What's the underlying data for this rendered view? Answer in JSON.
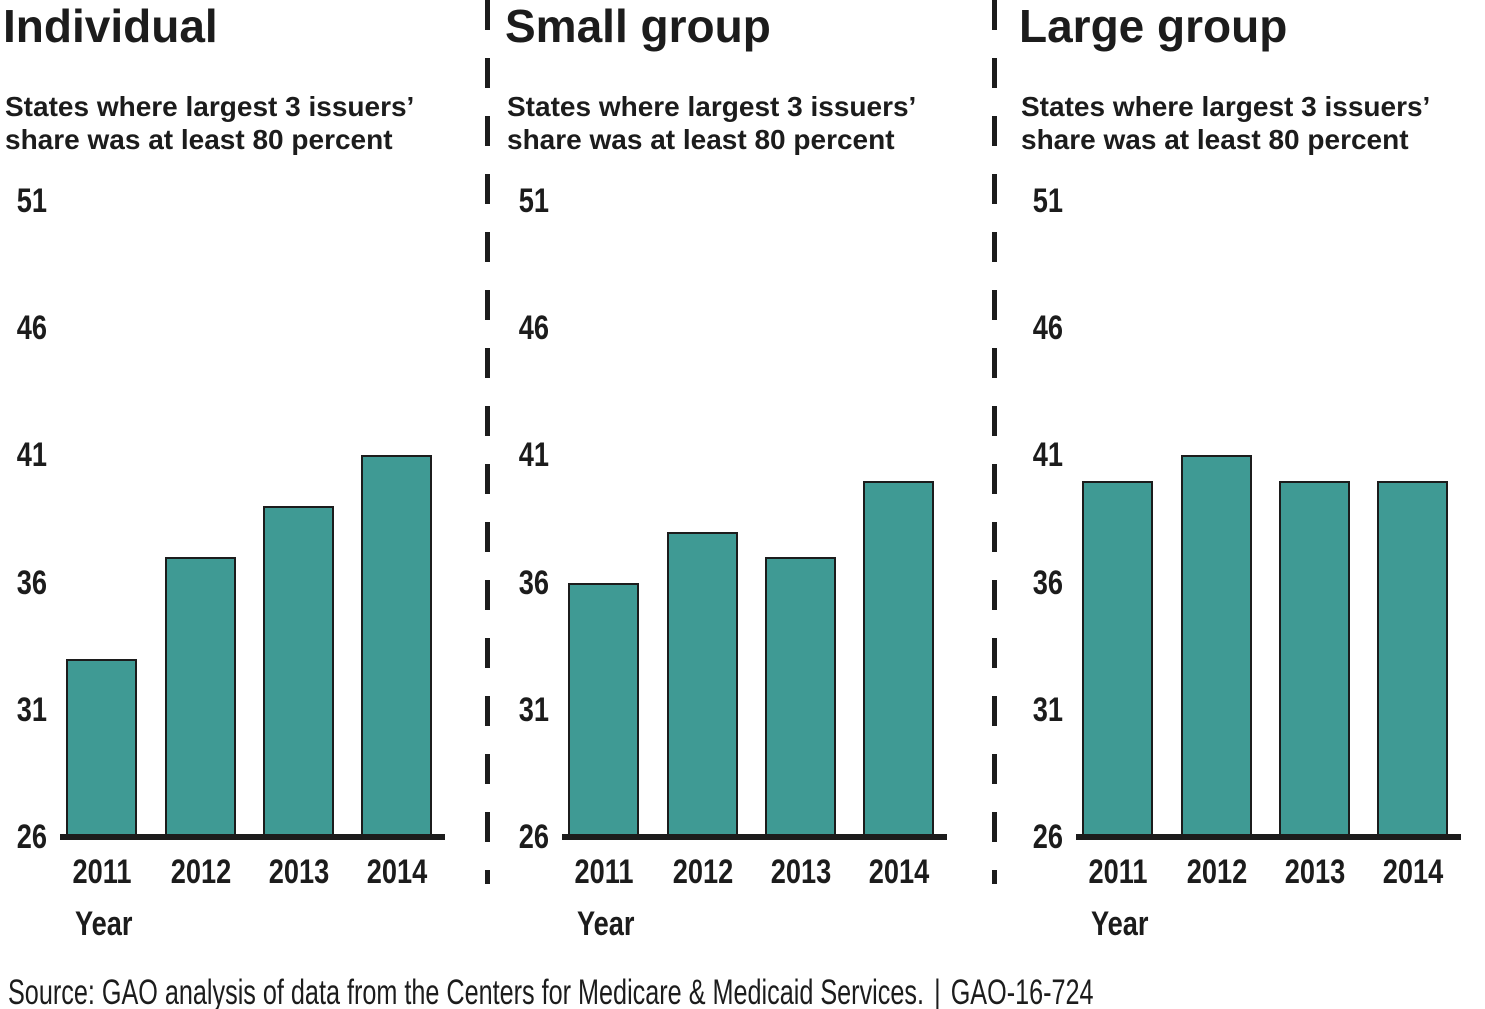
{
  "figure": {
    "kind": "three-panel bar chart figure"
  },
  "colors": {
    "bar_fill": "#3F9A94",
    "bar_border": "#1c1c1c",
    "ink": "#1c1c1c",
    "background": "#ffffff"
  },
  "chart_data": [
    {
      "type": "bar",
      "panel": "individual",
      "title": "Individual",
      "subtitle_lines": [
        "States where largest 3 issuers’",
        "share was at least 80 percent"
      ],
      "categories": [
        "2011",
        "2012",
        "2013",
        "2014"
      ],
      "values": [
        33,
        37,
        39,
        41
      ],
      "xlabel": "Year",
      "ylabel": "",
      "ylim": [
        26,
        51
      ],
      "yticks": [
        26,
        31,
        36,
        41,
        46,
        51
      ],
      "grid": false,
      "legend": "none"
    },
    {
      "type": "bar",
      "panel": "small-group",
      "title": "Small group",
      "subtitle_lines": [
        "States where largest 3 issuers’",
        "share was at least 80 percent"
      ],
      "categories": [
        "2011",
        "2012",
        "2013",
        "2014"
      ],
      "values": [
        36,
        38,
        37,
        40
      ],
      "xlabel": "Year",
      "ylabel": "",
      "ylim": [
        26,
        51
      ],
      "yticks": [
        26,
        31,
        36,
        41,
        46,
        51
      ],
      "grid": false,
      "legend": "none"
    },
    {
      "type": "bar",
      "panel": "large-group",
      "title": "Large group",
      "subtitle_lines": [
        "States where largest 3 issuers’",
        "share was at least 80 percent"
      ],
      "categories": [
        "2011",
        "2012",
        "2013",
        "2014"
      ],
      "values": [
        40,
        41,
        40,
        40
      ],
      "xlabel": "Year",
      "ylabel": "",
      "ylim": [
        26,
        51
      ],
      "yticks": [
        26,
        31,
        36,
        41,
        46,
        51
      ],
      "grid": false,
      "legend": "none"
    }
  ],
  "footer": {
    "source": "Source: GAO analysis of data from the Centers for Medicare & Medicaid Services.",
    "separator": "|",
    "report_id": "GAO-16-724"
  }
}
